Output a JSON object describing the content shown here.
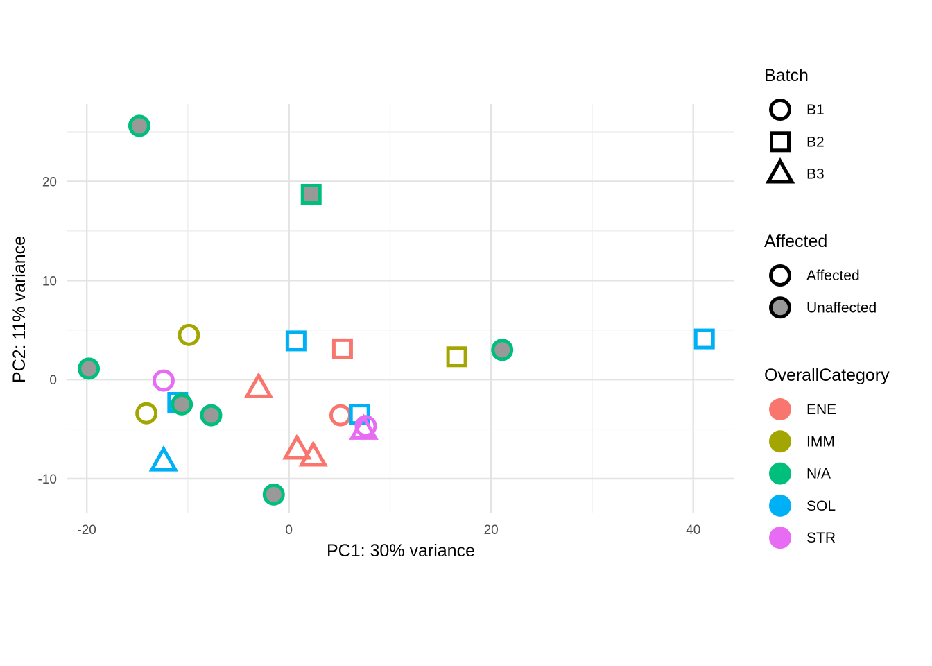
{
  "chart_data": {
    "type": "scatter",
    "xlabel": "PC1: 30% variance",
    "ylabel": "PC2: 11% variance",
    "xlim": [
      -22,
      44
    ],
    "ylim": [
      -13.5,
      27.8
    ],
    "x_major_ticks": [
      -20,
      0,
      20,
      40
    ],
    "x_tick_labels": [
      "-20",
      "0",
      "20",
      "40"
    ],
    "x_minor_ticks": [
      -10,
      10,
      30
    ],
    "y_major_ticks": [
      -10,
      0,
      10,
      20
    ],
    "y_tick_labels": [
      "-10",
      "0",
      "10",
      "20"
    ],
    "y_minor_ticks": [
      -5,
      5,
      15,
      25
    ],
    "grid": true,
    "legend_position": "right",
    "legends": [
      {
        "title": "Batch",
        "kind": "shape",
        "items": [
          {
            "label": "B1",
            "shape": "circle",
            "filled": false
          },
          {
            "label": "B2",
            "shape": "square",
            "filled": false
          },
          {
            "label": "B3",
            "shape": "triangle",
            "filled": false
          }
        ]
      },
      {
        "title": "Affected",
        "kind": "fill",
        "items": [
          {
            "label": "Affected",
            "shape": "circle",
            "filled": false
          },
          {
            "label": "Unaffected",
            "shape": "circle",
            "filled": true
          }
        ]
      },
      {
        "title": "OverallCategory",
        "kind": "color",
        "items": [
          {
            "label": "ENE",
            "color": "#F8766D"
          },
          {
            "label": "IMM",
            "color": "#A3A500"
          },
          {
            "label": "N/A",
            "color": "#00BF7D"
          },
          {
            "label": "SOL",
            "color": "#00B0F6"
          },
          {
            "label": "STR",
            "color": "#E76BF3"
          }
        ]
      }
    ],
    "category_colors": {
      "ENE": "#F8766D",
      "IMM": "#A3A500",
      "N/A": "#00BF7D",
      "SOL": "#00B0F6",
      "STR": "#E76BF3"
    },
    "unaffected_fill": "#999999",
    "points": [
      {
        "x": -14.8,
        "y": 25.6,
        "batch": "B1",
        "affected": "Unaffected",
        "category": "N/A"
      },
      {
        "x": 2.2,
        "y": 18.7,
        "batch": "B2",
        "affected": "Unaffected",
        "category": "N/A"
      },
      {
        "x": -9.9,
        "y": 4.5,
        "batch": "B1",
        "affected": "Affected",
        "category": "IMM"
      },
      {
        "x": -19.8,
        "y": 1.1,
        "batch": "B1",
        "affected": "Unaffected",
        "category": "N/A"
      },
      {
        "x": -12.4,
        "y": -0.1,
        "batch": "B1",
        "affected": "Affected",
        "category": "STR"
      },
      {
        "x": -11.0,
        "y": -2.3,
        "batch": "B2",
        "affected": "Affected",
        "category": "SOL"
      },
      {
        "x": -10.6,
        "y": -2.5,
        "batch": "B1",
        "affected": "Unaffected",
        "category": "N/A"
      },
      {
        "x": -14.1,
        "y": -3.4,
        "batch": "B1",
        "affected": "Affected",
        "category": "IMM"
      },
      {
        "x": -7.7,
        "y": -3.6,
        "batch": "B1",
        "affected": "Unaffected",
        "category": "N/A"
      },
      {
        "x": -12.4,
        "y": -8.3,
        "batch": "B3",
        "affected": "Affected",
        "category": "SOL"
      },
      {
        "x": -3.0,
        "y": -0.9,
        "batch": "B3",
        "affected": "Affected",
        "category": "ENE"
      },
      {
        "x": 0.7,
        "y": 3.9,
        "batch": "B2",
        "affected": "Affected",
        "category": "SOL"
      },
      {
        "x": 5.3,
        "y": 3.1,
        "batch": "B2",
        "affected": "Affected",
        "category": "ENE"
      },
      {
        "x": 5.1,
        "y": -3.6,
        "batch": "B1",
        "affected": "Affected",
        "category": "ENE"
      },
      {
        "x": 7.0,
        "y": -3.5,
        "batch": "B2",
        "affected": "Affected",
        "category": "SOL"
      },
      {
        "x": 7.4,
        "y": -5.1,
        "batch": "B3",
        "affected": "Affected",
        "category": "STR"
      },
      {
        "x": 7.6,
        "y": -4.7,
        "batch": "B1",
        "affected": "Affected",
        "category": "STR"
      },
      {
        "x": 0.8,
        "y": -7.1,
        "batch": "B3",
        "affected": "Affected",
        "category": "ENE"
      },
      {
        "x": 2.4,
        "y": -7.8,
        "batch": "B3",
        "affected": "Affected",
        "category": "ENE"
      },
      {
        "x": -1.5,
        "y": -11.6,
        "batch": "B1",
        "affected": "Unaffected",
        "category": "N/A"
      },
      {
        "x": 16.6,
        "y": 2.3,
        "batch": "B2",
        "affected": "Affected",
        "category": "IMM"
      },
      {
        "x": 21.1,
        "y": 3.0,
        "batch": "B1",
        "affected": "Unaffected",
        "category": "N/A"
      },
      {
        "x": 41.1,
        "y": 4.1,
        "batch": "B2",
        "affected": "Affected",
        "category": "SOL"
      }
    ]
  }
}
